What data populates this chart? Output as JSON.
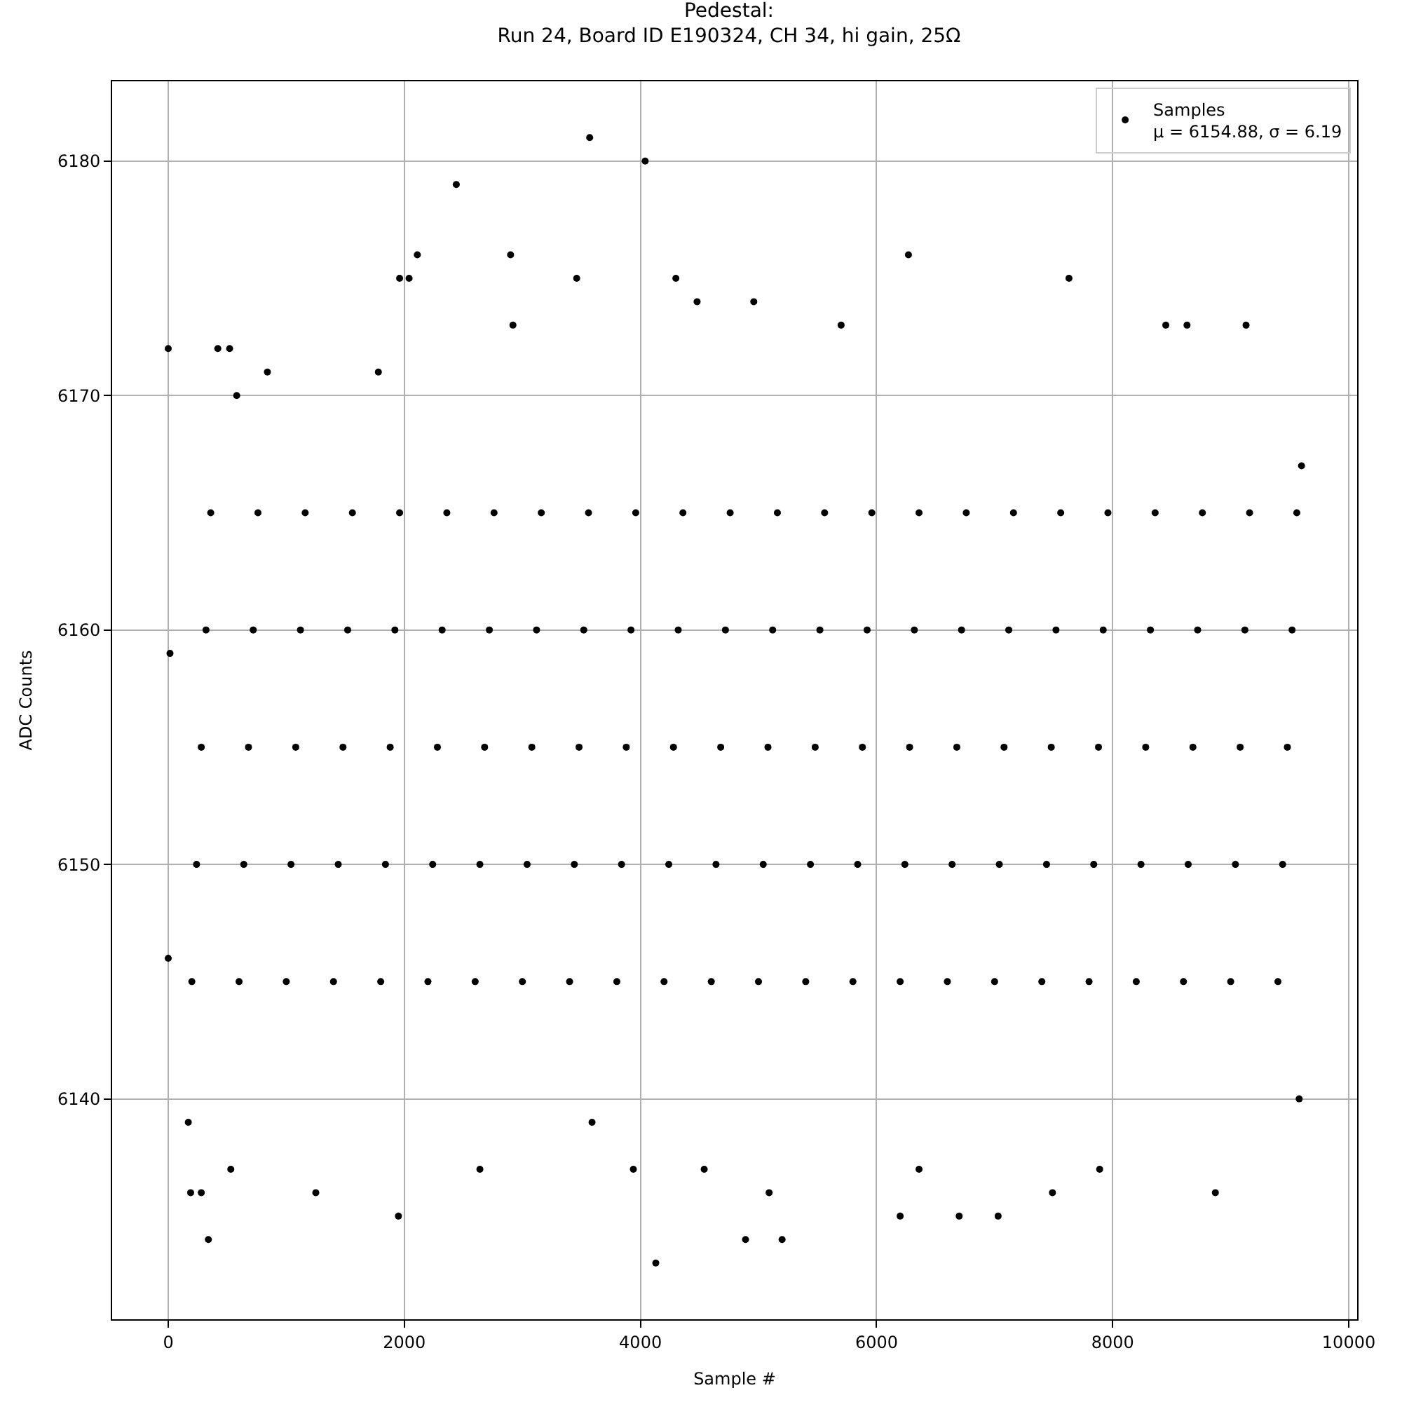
{
  "chart_data": {
    "type": "scatter",
    "title": "Pedestal:\nRun 24, Board ID E190324, CH 34, hi gain, 25Ω",
    "xlabel": "Sample #",
    "ylabel": "ADC Counts",
    "xlim": [
      -475,
      10071
    ],
    "ylim": [
      6130.6,
      6183.4
    ],
    "xticks": [
      0,
      2000,
      4000,
      6000,
      8000,
      10000
    ],
    "yticks": [
      6140,
      6150,
      6160,
      6170,
      6180
    ],
    "grid": true,
    "legend": "top right",
    "marker": "circle",
    "series": [
      {
        "name": "Samples\nμ = 6154.88, σ = 6.19",
        "color": "#000000",
        "x": [
          0,
          15,
          0,
          170,
          190,
          280,
          340,
          420,
          520,
          530,
          580,
          840,
          1250,
          1780,
          1950,
          1960,
          2040,
          2110,
          2440,
          2640,
          2900,
          2920,
          3460,
          3570,
          3590,
          3940,
          4040,
          4130,
          4300,
          4480,
          4540,
          4890,
          4960,
          5090,
          5200,
          5700,
          6200,
          6270,
          6360,
          6700,
          7030,
          7490,
          7630,
          7890,
          8450,
          8630,
          8870,
          9130,
          9580,
          9600,
          200,
          240,
          280,
          320,
          360,
          600,
          640,
          680,
          720,
          760,
          1000,
          1040,
          1080,
          1120,
          1160,
          1400,
          1440,
          1480,
          1520,
          1560,
          1800,
          1840,
          1880,
          1920,
          1960,
          2200,
          2240,
          2280,
          2320,
          2360,
          2600,
          2640,
          2680,
          2720,
          2760,
          3000,
          3040,
          3080,
          3120,
          3160,
          3400,
          3440,
          3480,
          3520,
          3560,
          3800,
          3840,
          3880,
          3920,
          3960,
          4200,
          4240,
          4280,
          4320,
          4360,
          4600,
          4640,
          4680,
          4720,
          4760,
          5000,
          5040,
          5080,
          5120,
          5160,
          5400,
          5440,
          5480,
          5520,
          5560,
          5800,
          5840,
          5880,
          5920,
          5960,
          6200,
          6240,
          6280,
          6320,
          6360,
          6600,
          6640,
          6680,
          6720,
          6760,
          7000,
          7040,
          7080,
          7120,
          7160,
          7400,
          7440,
          7480,
          7520,
          7560,
          7800,
          7840,
          7880,
          7920,
          7960,
          8200,
          8240,
          8280,
          8320,
          8360,
          8600,
          8640,
          8680,
          8720,
          8760,
          9000,
          9040,
          9080,
          9120,
          9160,
          9400,
          9440,
          9480,
          9520,
          9560
        ],
        "values": [
          6172,
          6159,
          6146,
          6139,
          6136,
          6136,
          6134,
          6172,
          6172,
          6137,
          6170,
          6171,
          6136,
          6171,
          6135,
          6175,
          6175,
          6176,
          6179,
          6137,
          6176,
          6173,
          6175,
          6181,
          6139,
          6137,
          6180,
          6133,
          6175,
          6174,
          6137,
          6134,
          6174,
          6136,
          6134,
          6173,
          6135,
          6176,
          6137,
          6135,
          6135,
          6136,
          6175,
          6137,
          6173,
          6173,
          6136,
          6173,
          6140,
          6167,
          6145,
          6150,
          6155,
          6160,
          6165,
          6145,
          6150,
          6155,
          6160,
          6165,
          6145,
          6150,
          6155,
          6160,
          6165,
          6145,
          6150,
          6155,
          6160,
          6165,
          6145,
          6150,
          6155,
          6160,
          6165,
          6145,
          6150,
          6155,
          6160,
          6165,
          6145,
          6150,
          6155,
          6160,
          6165,
          6145,
          6150,
          6155,
          6160,
          6165,
          6145,
          6150,
          6155,
          6160,
          6165,
          6145,
          6150,
          6155,
          6160,
          6165,
          6145,
          6150,
          6155,
          6160,
          6165,
          6145,
          6150,
          6155,
          6160,
          6165,
          6145,
          6150,
          6155,
          6160,
          6165,
          6145,
          6150,
          6155,
          6160,
          6165,
          6145,
          6150,
          6155,
          6160,
          6165,
          6145,
          6150,
          6155,
          6160,
          6165,
          6145,
          6150,
          6155,
          6160,
          6165,
          6145,
          6150,
          6155,
          6160,
          6165,
          6145,
          6150,
          6155,
          6160,
          6165,
          6145,
          6150,
          6155,
          6160,
          6165,
          6145,
          6150,
          6155,
          6160,
          6165,
          6145,
          6150,
          6155,
          6160,
          6165,
          6145,
          6150,
          6155,
          6160,
          6165,
          6145,
          6150,
          6155,
          6160,
          6165
        ]
      }
    ]
  }
}
